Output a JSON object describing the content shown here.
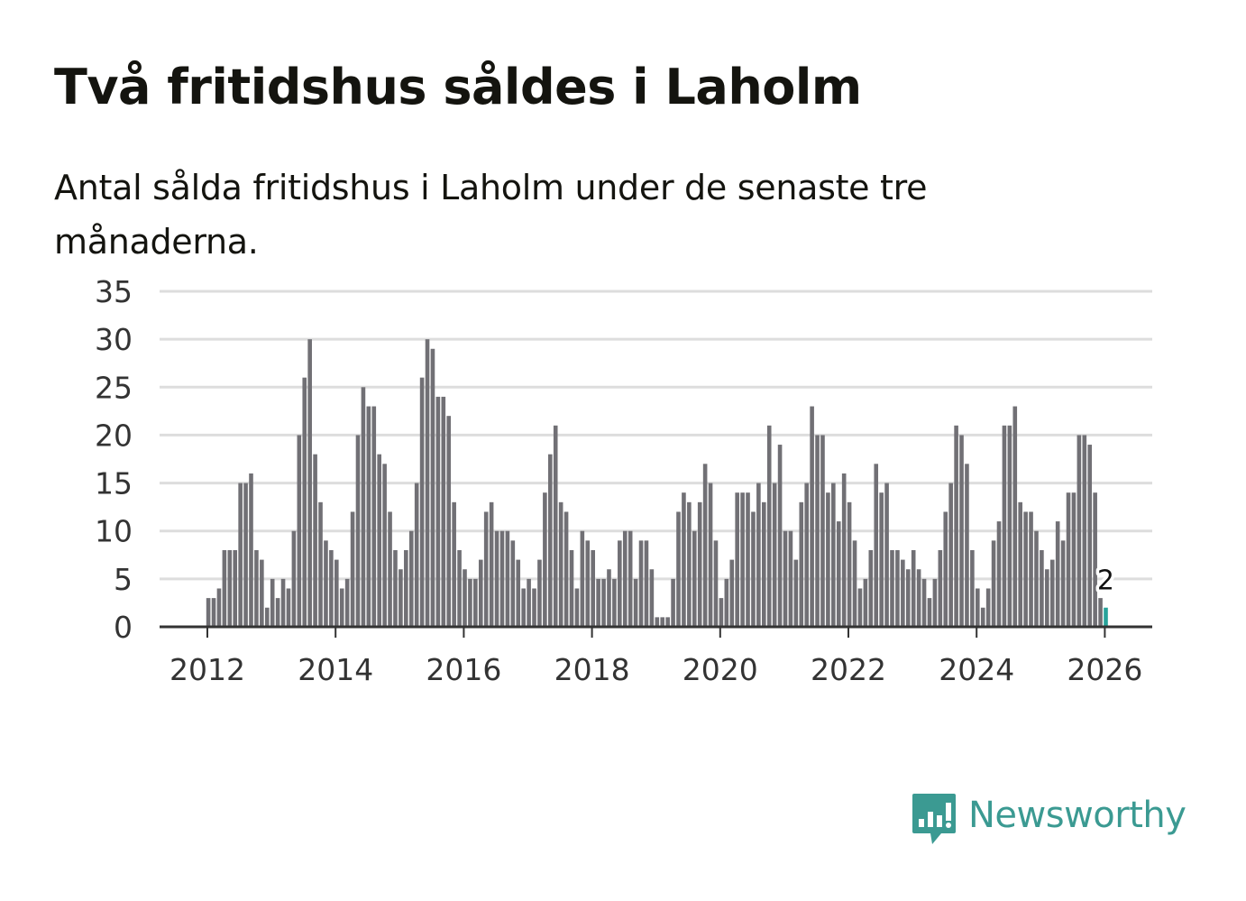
{
  "title": "Två fritidshus såldes i Laholm",
  "subtitle": "Antal sålda fritidshus i Laholm under de senaste tre månaderna.",
  "colors": {
    "bar": "#717075",
    "highlight": "#27a39a",
    "grid": "#dddddd",
    "axis": "#333333",
    "brand": "#3b9a92"
  },
  "logo": {
    "text": "Newsworthy",
    "icon": "chart-speech-bubble-icon"
  },
  "chart_data": {
    "type": "bar",
    "title": "Två fritidshus såldes i Laholm",
    "subtitle": "Antal sålda fritidshus i Laholm under de senaste tre månaderna.",
    "xlabel": "",
    "ylabel": "",
    "ylim": [
      0,
      35
    ],
    "yticks": [
      0,
      5,
      10,
      15,
      20,
      25,
      30,
      35
    ],
    "xticks": [
      "2012",
      "2014",
      "2016",
      "2018",
      "2020",
      "2022",
      "2024",
      "2026"
    ],
    "grid": true,
    "start_month": "2012-01",
    "end_month": "2026-01",
    "highlight_label": "2",
    "values": [
      3,
      3,
      4,
      8,
      8,
      8,
      15,
      15,
      16,
      8,
      7,
      2,
      5,
      3,
      5,
      4,
      10,
      20,
      26,
      30,
      18,
      13,
      9,
      8,
      7,
      4,
      5,
      12,
      20,
      25,
      23,
      23,
      18,
      17,
      12,
      8,
      6,
      8,
      10,
      15,
      26,
      30,
      29,
      24,
      24,
      22,
      13,
      8,
      6,
      5,
      5,
      7,
      12,
      13,
      10,
      10,
      10,
      9,
      7,
      4,
      5,
      4,
      7,
      14,
      18,
      21,
      13,
      12,
      8,
      4,
      10,
      9,
      8,
      5,
      5,
      6,
      5,
      9,
      10,
      10,
      5,
      9,
      9,
      6,
      1,
      1,
      1,
      5,
      12,
      14,
      13,
      10,
      13,
      17,
      15,
      9,
      3,
      5,
      7,
      14,
      14,
      14,
      12,
      15,
      13,
      21,
      15,
      19,
      10,
      10,
      7,
      13,
      15,
      23,
      20,
      20,
      14,
      15,
      11,
      16,
      13,
      9,
      4,
      5,
      8,
      17,
      14,
      15,
      8,
      8,
      7,
      6,
      8,
      6,
      5,
      3,
      5,
      8,
      12,
      15,
      21,
      20,
      17,
      8,
      4,
      2,
      4,
      9,
      11,
      21,
      21,
      23,
      13,
      12,
      12,
      10,
      8,
      6,
      7,
      11,
      9,
      14,
      14,
      20,
      20,
      19,
      14,
      3,
      2
    ]
  }
}
